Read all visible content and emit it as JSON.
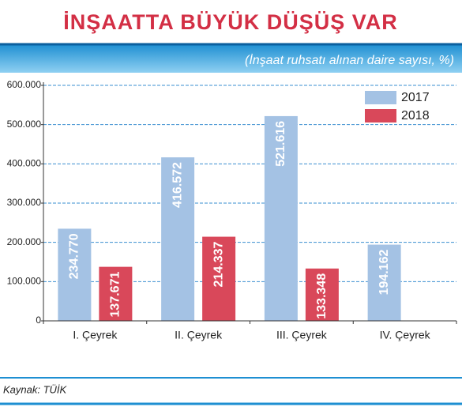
{
  "chart_data": {
    "type": "bar",
    "title": "İNŞAATTA BÜYÜK DÜŞÜŞ VAR",
    "subtitle": "(İnşaat ruhsatı alınan daire sayısı, %)",
    "source": "Kaynak: TÜİK",
    "categories": [
      "I. Çeyrek",
      "II. Çeyrek",
      "III. Çeyrek",
      "IV. Çeyrek"
    ],
    "series": [
      {
        "name": "2017",
        "color": "#a4c2e4",
        "values": [
          234770,
          416572,
          521616,
          194162
        ],
        "value_labels": [
          "234.770",
          "416.572",
          "521.616",
          "194.162"
        ]
      },
      {
        "name": "2018",
        "color": "#d9485a",
        "values": [
          137671,
          214337,
          133348,
          null
        ],
        "value_labels": [
          "137.671",
          "214.337",
          "133.348",
          null
        ]
      }
    ],
    "ylim": [
      0,
      600000
    ],
    "yticks": [
      0,
      {
        "value": 100000,
        "label": "100.000"
      },
      {
        "value": 200000,
        "label": "200.000"
      },
      {
        "value": 300000,
        "label": "300.000"
      },
      {
        "value": 400000,
        "label": "400.000"
      },
      {
        "value": 500000,
        "label": "500.000"
      },
      {
        "value": 600000,
        "label": "600.000"
      }
    ],
    "grid": true,
    "legend": "upper right"
  }
}
